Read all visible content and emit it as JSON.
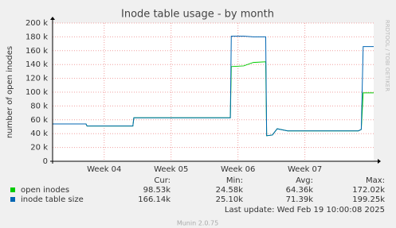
{
  "chart_data": {
    "type": "line",
    "title": "Inode table usage - by month",
    "y_label": "number of open inodes",
    "side_text": "RRDTOOL / TOBI OETIKER",
    "xlim": [
      0,
      33.6
    ],
    "xticks": [
      {
        "value": 5.4,
        "label": "Week 04"
      },
      {
        "value": 12.4,
        "label": "Week 05"
      },
      {
        "value": 19.4,
        "label": "Week 06"
      },
      {
        "value": 26.4,
        "label": "Week 07"
      }
    ],
    "ylim": [
      0,
      200000
    ],
    "yticks": [
      {
        "value": 0,
        "label": "0"
      },
      {
        "value": 20000,
        "label": "20 k"
      },
      {
        "value": 40000,
        "label": "40 k"
      },
      {
        "value": 60000,
        "label": "60 k"
      },
      {
        "value": 80000,
        "label": "80 k"
      },
      {
        "value": 100000,
        "label": "100 k"
      },
      {
        "value": 120000,
        "label": "120 k"
      },
      {
        "value": 140000,
        "label": "140 k"
      },
      {
        "value": 160000,
        "label": "160 k"
      },
      {
        "value": 180000,
        "label": "180 k"
      },
      {
        "value": 200000,
        "label": "200 k"
      }
    ],
    "grid": true,
    "x": [
      0,
      3.5,
      3.6,
      8.4,
      8.5,
      18.6,
      18.7,
      20.0,
      21.0,
      22.3,
      22.4,
      23.0,
      23.5,
      24.6,
      32.0,
      32.3,
      32.5,
      33.6
    ],
    "series": [
      {
        "name": "open inodes",
        "color": "#00cc00",
        "values": [
          54000,
          54000,
          51000,
          51000,
          63000,
          63000,
          137000,
          138000,
          143000,
          144000,
          37000,
          38000,
          47000,
          44000,
          44000,
          46000,
          99000,
          99000
        ]
      },
      {
        "name": "inode table size",
        "color": "#0066b3",
        "values": [
          54000,
          54000,
          51000,
          51000,
          63000,
          63000,
          181000,
          181000,
          180000,
          180000,
          37000,
          38000,
          47000,
          44000,
          44000,
          46000,
          166000,
          166000
        ]
      }
    ],
    "stats": {
      "headers": [
        "Cur:",
        "Min:",
        "Avg:",
        "Max:"
      ],
      "rows": [
        [
          "98.53k",
          "24.58k",
          "64.36k",
          "172.02k"
        ],
        [
          "166.14k",
          "25.10k",
          "71.39k",
          "199.25k"
        ]
      ]
    },
    "last_update": "Last update: Wed Feb 19 10:00:08 2025",
    "footer": "Munin 2.0.75"
  }
}
